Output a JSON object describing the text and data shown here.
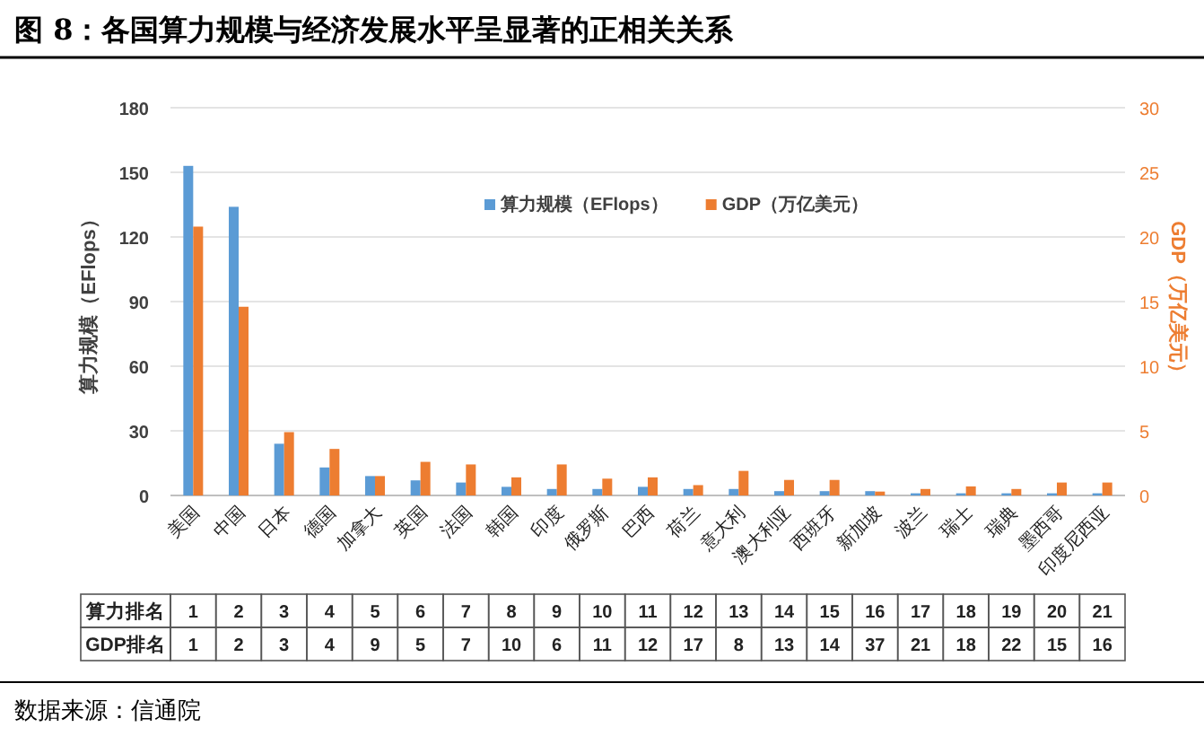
{
  "chart_data": {
    "type": "bar",
    "title": "图 8：各国算力规模与经济发展水平呈显著的正相关关系",
    "categories": [
      "美国",
      "中国",
      "日本",
      "德国",
      "加拿大",
      "英国",
      "法国",
      "韩国",
      "印度",
      "俄罗斯",
      "巴西",
      "荷兰",
      "意大利",
      "澳大利亚",
      "西班牙",
      "新加坡",
      "波兰",
      "瑞士",
      "瑞典",
      "墨西哥",
      "印度尼西亚"
    ],
    "series": [
      {
        "name": "算力规模（EFlops）",
        "color": "#5b9bd5",
        "values": [
          153,
          134,
          24,
          13,
          9,
          7,
          6,
          4,
          3,
          3,
          4,
          3,
          3,
          2,
          2,
          2,
          1,
          1,
          1,
          1,
          1
        ]
      },
      {
        "name": "GDP（万亿美元）",
        "color": "#ed7d31",
        "axis": "y2",
        "values": [
          20.8,
          14.6,
          4.9,
          3.6,
          1.5,
          2.6,
          2.4,
          1.4,
          2.4,
          1.3,
          1.4,
          0.8,
          1.9,
          1.2,
          1.2,
          0.3,
          0.5,
          0.7,
          0.5,
          1.0,
          1.0
        ]
      }
    ],
    "ylabel": "算力规模（EFlops）",
    "y2label": "GDP（万亿美元）",
    "ylim": [
      0,
      180
    ],
    "yticks": [
      0,
      30,
      60,
      90,
      120,
      150,
      180
    ],
    "y2lim": [
      0,
      30
    ],
    "y2ticks": [
      0,
      5,
      10,
      15,
      20,
      25,
      30
    ],
    "grid": "y",
    "legend": "top",
    "annotations": [
      "算力排名",
      "1",
      "2",
      "3",
      "4",
      "5",
      "6",
      "7",
      "8",
      "9",
      "10",
      "11",
      "12",
      "13",
      "14",
      "15",
      "16",
      "17",
      "18",
      "19",
      "20",
      "21",
      "GDP排名",
      "1",
      "2",
      "3",
      "4",
      "9",
      "5",
      "7",
      "10",
      "6",
      "11",
      "12",
      "17",
      "8",
      "13",
      "14",
      "37",
      "21",
      "18",
      "22",
      "15",
      "16",
      "数据来源：信通院"
    ]
  }
}
